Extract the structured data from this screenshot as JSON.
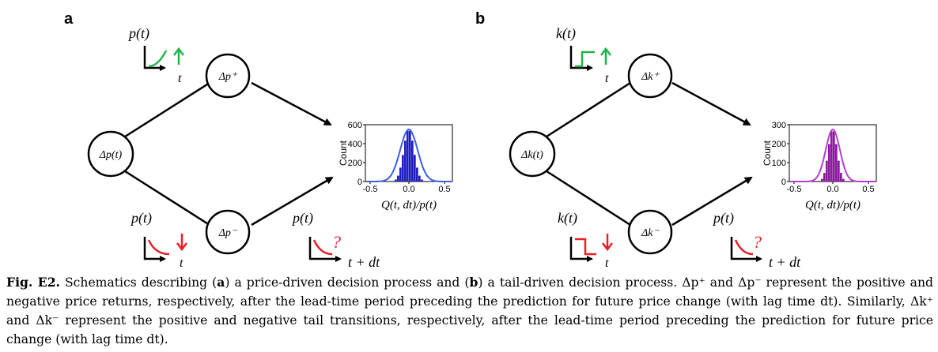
{
  "panel_a": {
    "label": "a",
    "top_signal": "p(t)",
    "t_axis": "t",
    "up_node": "Δp⁺",
    "center_node": "Δp(t)",
    "down_node": "Δp⁻",
    "bottom_signal": "p(t)",
    "future_signal": "p(t)",
    "question": "?",
    "future_time": "t + dt",
    "hist_xlabel": "Q(t, dt)/p(t)",
    "hist_ylabel": "Count",
    "hist_yticks": [
      "600",
      "400",
      "200",
      "0"
    ],
    "hist_xticks": [
      "-0.5",
      "0.0",
      "0.5"
    ],
    "hist_bar_color": "#1f1fbf",
    "hist_curve_color": "#3a5ee8"
  },
  "panel_b": {
    "label": "b",
    "top_signal": "k(t)",
    "t_axis": "t",
    "up_node": "Δk⁺",
    "center_node": "Δk(t)",
    "down_node": "Δk⁻",
    "bottom_signal": "k(t)",
    "future_signal": "p(t)",
    "question": "?",
    "future_time": "t + dt",
    "hist_xlabel": "Q(t, dt)/p(t)",
    "hist_ylabel": "Count",
    "hist_yticks": [
      "300",
      "200",
      "100",
      "0"
    ],
    "hist_xticks": [
      "-0.5",
      "0.0",
      "0.5"
    ],
    "hist_bar_color": "#8a1a9e",
    "hist_curve_color": "#b43fd0"
  },
  "colors": {
    "up": "#22b24c",
    "down": "#e8202a"
  },
  "caption": {
    "fig_label": "Fig. E2.",
    "text_1": " Schematics describing (",
    "a": "a",
    "text_2": ") a price-driven decision process and (",
    "b": "b",
    "text_3": ") a tail-driven decision process. Δp⁺ and Δp⁻ represent the positive and negative price returns, respectively, after the lead-time period preceding the prediction for future price change (with lag time dt). Similarly, Δk⁺ and Δk⁻ represent the positive and negative tail transitions, respectively, after the lead-time period preceding the prediction for future price change (with lag time dt)."
  }
}
